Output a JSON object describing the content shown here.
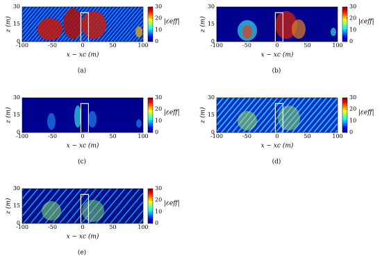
{
  "chart_data": [
    {
      "type": "heatmap",
      "caption": "(a)",
      "xlabel": "x − xc (m)",
      "ylabel": "z (m)",
      "xlim": [
        -100,
        100
      ],
      "xticks": [
        -100,
        -50,
        0,
        50,
        100
      ],
      "ylim": [
        0,
        30
      ],
      "yticks": [
        0,
        15,
        30
      ],
      "colorbar": {
        "label": "|εeff|",
        "lim": [
          0,
          30
        ],
        "ticks": [
          0,
          10,
          20,
          30
        ]
      }
    },
    {
      "type": "heatmap",
      "caption": "(b)",
      "xlabel": "x − xc (m)",
      "ylabel": "z (m)",
      "xlim": [
        -100,
        100
      ],
      "xticks": [
        -100,
        -50,
        0,
        50,
        100
      ],
      "ylim": [
        0,
        30
      ],
      "yticks": [
        0,
        15,
        30
      ],
      "colorbar": {
        "label": "|εeff|",
        "lim": [
          0,
          30
        ],
        "ticks": [
          0,
          10,
          20,
          30
        ]
      }
    },
    {
      "type": "heatmap",
      "caption": "(c)",
      "xlabel": "x − xc (m)",
      "ylabel": "z (m)",
      "xlim": [
        -100,
        100
      ],
      "xticks": [
        -100,
        -50,
        0,
        50,
        100
      ],
      "ylim": [
        0,
        30
      ],
      "yticks": [
        0,
        15,
        30
      ],
      "colorbar": {
        "label": "|εeff|",
        "lim": [
          0,
          30
        ],
        "ticks": [
          0,
          10,
          20,
          30
        ]
      }
    },
    {
      "type": "heatmap",
      "caption": "(d)",
      "xlabel": "x − xc (m)",
      "ylabel": "z (m)",
      "xlim": [
        -100,
        100
      ],
      "xticks": [
        -100,
        -50,
        0,
        50,
        100
      ],
      "ylim": [
        0,
        30
      ],
      "yticks": [
        0,
        15,
        30
      ],
      "colorbar": {
        "label": "|εeff|",
        "lim": [
          0,
          30
        ],
        "ticks": [
          0,
          10,
          20,
          30
        ]
      }
    },
    {
      "type": "heatmap",
      "caption": "(e)",
      "xlabel": "x − xc (m)",
      "ylabel": "z (m)",
      "xlim": [
        -100,
        100
      ],
      "xticks": [
        -100,
        -50,
        0,
        50,
        100
      ],
      "ylim": [
        0,
        30
      ],
      "yticks": [
        0,
        15,
        30
      ],
      "colorbar": {
        "label": "|εeff|",
        "lim": [
          0,
          30
        ],
        "ticks": [
          0,
          10,
          20,
          30
        ]
      }
    }
  ]
}
